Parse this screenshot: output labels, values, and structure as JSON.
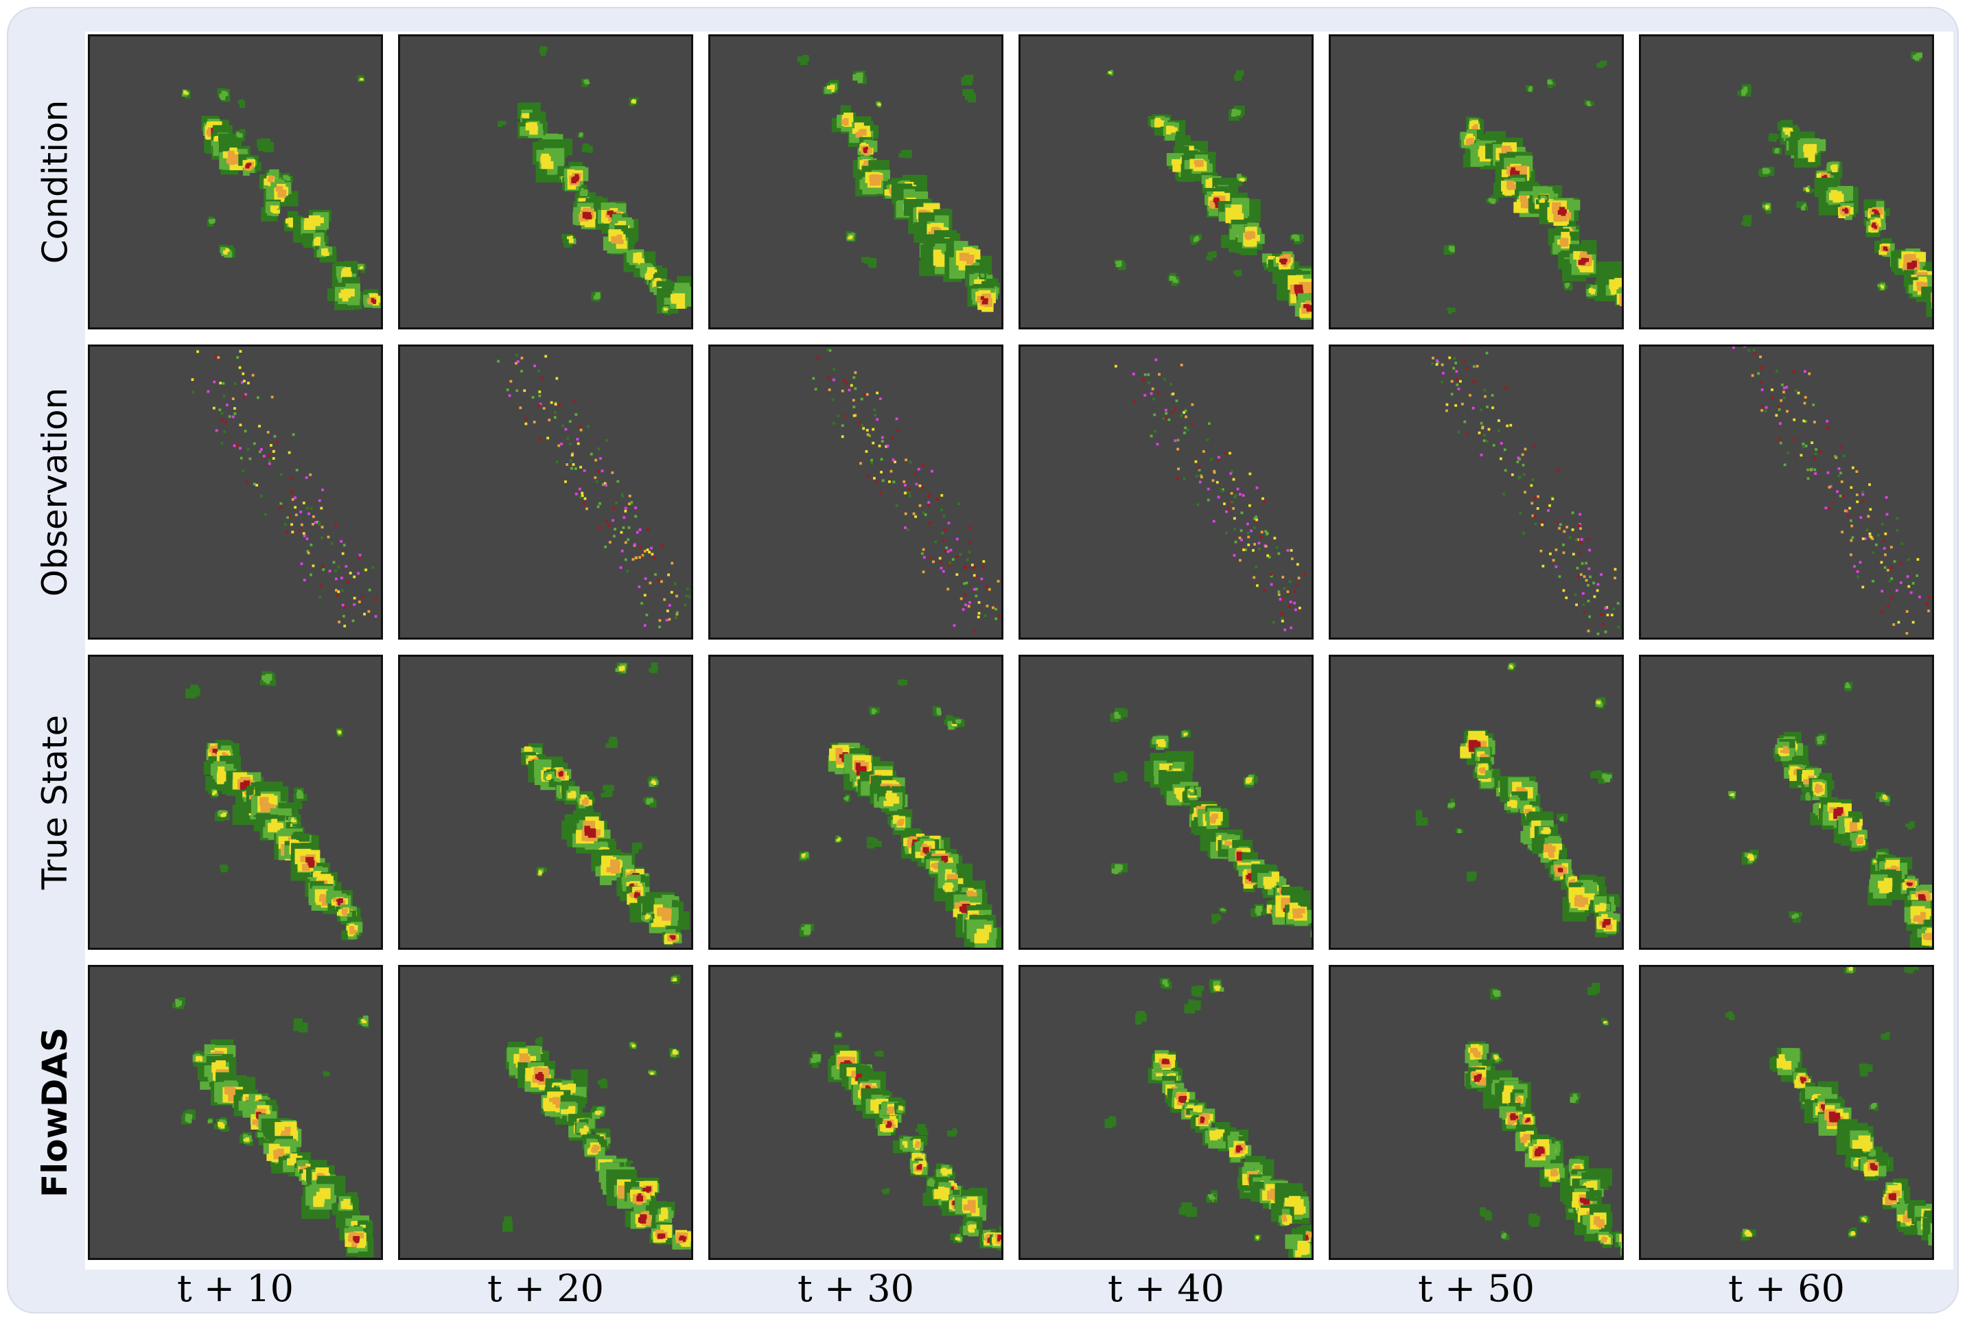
{
  "row_labels": [
    "Condition",
    "Observation",
    "True State",
    "FlowDAS"
  ],
  "column_labels": [
    "t + 10",
    "t + 20",
    "t + 30",
    "t + 40",
    "t + 50",
    "t + 60"
  ],
  "colors": {
    "frame_background": "#e8ecf6",
    "map_background": "#474747",
    "dark_green": "#2f7a1f",
    "light_green": "#5cae3a",
    "yellow": "#f0e02a",
    "orange": "#e8a33a",
    "red": "#a8161c",
    "magenta": "#e040e8"
  },
  "panel_content": "radar precipitation fields"
}
